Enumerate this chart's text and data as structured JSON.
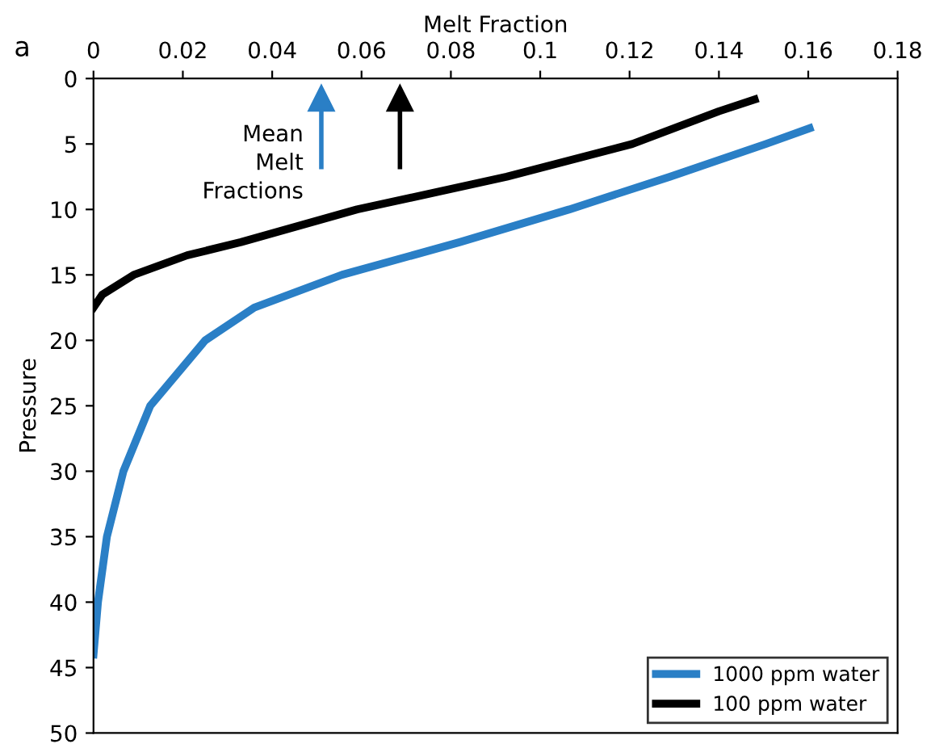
{
  "chart_data": {
    "type": "line",
    "xlabel": "Melt Fraction",
    "ylabel": "Pressure",
    "xlim": [
      0,
      0.18
    ],
    "xticks": [
      0,
      0.02,
      0.04,
      0.06,
      0.08,
      0.1,
      0.12,
      0.14,
      0.16,
      0.18
    ],
    "ylim": [
      50,
      0
    ],
    "yticks": [
      0,
      5,
      10,
      15,
      20,
      25,
      30,
      35,
      40,
      45,
      50
    ],
    "series": [
      {
        "name": "1000 ppm water",
        "color": "#2a7fc6",
        "x": [
          0.0,
          0.001,
          0.003,
          0.0067,
          0.0127,
          0.025,
          0.036,
          0.0556,
          0.082,
          0.1065,
          0.129,
          0.1505,
          0.1603
        ],
        "values": [
          44,
          40,
          35,
          30,
          25,
          20,
          17.5,
          15,
          12.5,
          10,
          7.5,
          5,
          3.8
        ]
      },
      {
        "name": "100 ppm water",
        "color": "#000000",
        "x": [
          0.0,
          0.002,
          0.009,
          0.021,
          0.033,
          0.059,
          0.0925,
          0.1206,
          0.14,
          0.148
        ],
        "values": [
          17.5,
          16.5,
          15,
          13.5,
          12.5,
          10,
          7.5,
          5,
          2.5,
          1.6
        ]
      }
    ],
    "ref_lines": [
      {
        "axis": "x",
        "value": 0.051,
        "color": "#2a7fc6"
      },
      {
        "axis": "x",
        "value": 0.0686,
        "color": "#000000"
      }
    ],
    "annotations": [
      "a",
      "Mean\nMelt\nFractions"
    ],
    "legend": "bottom right",
    "grid": false,
    "marker": "none",
    "line_style": "solid"
  }
}
